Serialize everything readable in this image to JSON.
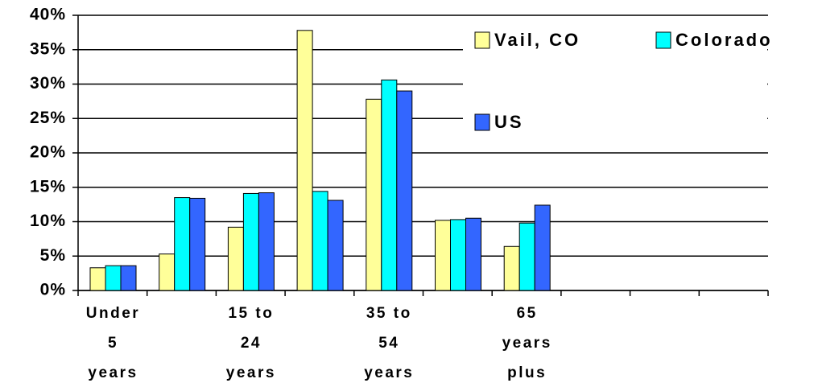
{
  "chart_data": {
    "type": "bar",
    "categories": [
      "Under\n5\nyears",
      null,
      "15 to\n24\nyears",
      null,
      "35 to\n54\nyears",
      null,
      "65\nyears\nplus",
      null,
      null,
      null
    ],
    "series": [
      {
        "name": "Vail, CO",
        "color": "#ffff99",
        "values": [
          3.3,
          5.3,
          9.2,
          37.8,
          27.8,
          10.2,
          6.4,
          null,
          null,
          null
        ]
      },
      {
        "name": "Colorado",
        "color": "#00ffff",
        "values": [
          3.6,
          13.5,
          14.1,
          14.4,
          30.6,
          10.3,
          9.8,
          null,
          null,
          null
        ]
      },
      {
        "name": "US",
        "color": "#3366ff",
        "values": [
          3.6,
          13.4,
          14.2,
          13.1,
          29.0,
          10.5,
          12.4,
          null,
          null,
          null
        ]
      }
    ],
    "ylim": [
      0,
      40
    ],
    "yticks": [
      {
        "value": 0,
        "label": "0%"
      },
      {
        "value": 5,
        "label": "5%"
      },
      {
        "value": 10,
        "label": "10%"
      },
      {
        "value": 15,
        "label": "15%"
      },
      {
        "value": 20,
        "label": "20%"
      },
      {
        "value": 25,
        "label": "25%"
      },
      {
        "value": 30,
        "label": "30%"
      },
      {
        "value": 35,
        "label": "35%"
      },
      {
        "value": 40,
        "label": "40%"
      }
    ],
    "grid": true
  }
}
